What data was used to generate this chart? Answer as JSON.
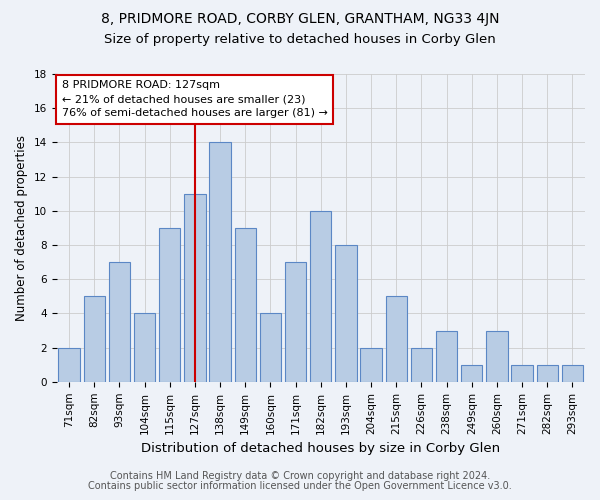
{
  "title": "8, PRIDMORE ROAD, CORBY GLEN, GRANTHAM, NG33 4JN",
  "subtitle": "Size of property relative to detached houses in Corby Glen",
  "xlabel": "Distribution of detached houses by size in Corby Glen",
  "ylabel": "Number of detached properties",
  "categories": [
    "71sqm",
    "82sqm",
    "93sqm",
    "104sqm",
    "115sqm",
    "127sqm",
    "138sqm",
    "149sqm",
    "160sqm",
    "171sqm",
    "182sqm",
    "193sqm",
    "204sqm",
    "215sqm",
    "226sqm",
    "238sqm",
    "249sqm",
    "260sqm",
    "271sqm",
    "282sqm",
    "293sqm"
  ],
  "values": [
    2,
    5,
    7,
    4,
    9,
    11,
    14,
    9,
    4,
    7,
    10,
    8,
    2,
    5,
    2,
    3,
    1,
    3,
    1,
    1,
    1
  ],
  "bar_color": "#b8cce4",
  "bar_edge_color": "#5b87c5",
  "highlight_index": 5,
  "highlight_line_color": "#cc0000",
  "annotation_text": "8 PRIDMORE ROAD: 127sqm\n← 21% of detached houses are smaller (23)\n76% of semi-detached houses are larger (81) →",
  "annotation_box_color": "#ffffff",
  "annotation_box_edge_color": "#cc0000",
  "ylim": [
    0,
    18
  ],
  "yticks": [
    0,
    2,
    4,
    6,
    8,
    10,
    12,
    14,
    16,
    18
  ],
  "grid_color": "#cccccc",
  "background_color": "#eef2f8",
  "footer_line1": "Contains HM Land Registry data © Crown copyright and database right 2024.",
  "footer_line2": "Contains public sector information licensed under the Open Government Licence v3.0.",
  "title_fontsize": 10,
  "subtitle_fontsize": 9.5,
  "xlabel_fontsize": 9.5,
  "ylabel_fontsize": 8.5,
  "tick_fontsize": 7.5,
  "annotation_fontsize": 8,
  "footer_fontsize": 7
}
